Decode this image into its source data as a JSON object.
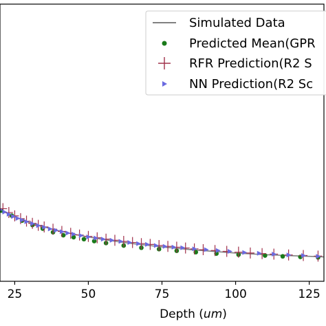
{
  "chart_data": {
    "type": "scatter",
    "title": "",
    "xlabel_prefix": "Depth (",
    "xlabel_unit": "um",
    "xlabel_suffix": ")",
    "ylabel": "",
    "xlim": [
      20,
      130
    ],
    "ylim": [
      0,
      1
    ],
    "x_ticks": [
      25,
      50,
      75,
      100,
      125
    ],
    "x_tick_labels": [
      "25",
      "50",
      "75",
      "100",
      "125"
    ],
    "grid": false,
    "legend_position": "upper-right",
    "series": [
      {
        "name": "Simulated Data",
        "kind": "line",
        "color": "#808080",
        "x": [
          20,
          22.5,
          25,
          30,
          35,
          40,
          45,
          50,
          55,
          60,
          65,
          70,
          75,
          80,
          85,
          90,
          95,
          100,
          105,
          110,
          115,
          120,
          125,
          130
        ],
        "y": [
          0.259,
          0.245,
          0.233,
          0.212,
          0.196,
          0.182,
          0.17,
          0.16,
          0.151,
          0.143,
          0.136,
          0.13,
          0.124,
          0.119,
          0.114,
          0.11,
          0.106,
          0.102,
          0.099,
          0.096,
          0.094,
          0.092,
          0.09,
          0.088
        ]
      },
      {
        "name": "Predicted Mean(GPR",
        "kind": "marker-dot",
        "color": "#1a7a1a",
        "x": [
          20.5,
          24,
          27.5,
          31,
          34.5,
          38,
          41.5,
          45,
          48.5,
          52,
          56,
          62,
          68,
          74,
          80,
          86.5,
          93.5,
          101,
          110,
          116,
          122,
          128
        ],
        "y": [
          0.255,
          0.237,
          0.219,
          0.203,
          0.19,
          0.177,
          0.166,
          0.159,
          0.152,
          0.145,
          0.138,
          0.129,
          0.121,
          0.116,
          0.11,
          0.105,
          0.1,
          0.096,
          0.093,
          0.09,
          0.088,
          0.086
        ]
      },
      {
        "name": "RFR Prediction(R2 S",
        "kind": "marker-plus",
        "color": "#a0304a",
        "x": [
          21,
          23,
          25,
          27,
          29,
          31,
          33,
          35,
          38,
          41,
          44,
          47,
          50,
          53,
          56,
          59,
          62,
          65,
          68,
          71,
          74,
          77,
          80,
          83,
          86,
          89,
          93,
          97,
          101,
          105,
          109,
          113,
          118,
          123,
          128
        ],
        "y": [
          0.262,
          0.248,
          0.236,
          0.226,
          0.217,
          0.209,
          0.202,
          0.196,
          0.188,
          0.18,
          0.173,
          0.167,
          0.162,
          0.157,
          0.152,
          0.148,
          0.144,
          0.14,
          0.136,
          0.133,
          0.129,
          0.126,
          0.123,
          0.12,
          0.117,
          0.114,
          0.111,
          0.108,
          0.105,
          0.102,
          0.1,
          0.098,
          0.095,
          0.093,
          0.091
        ]
      },
      {
        "name": "NN Prediction(R2 Sc",
        "kind": "marker-triangle",
        "color": "#6a6ae0",
        "x": [
          20,
          21.5,
          23,
          24.5,
          26,
          27.5,
          29,
          31,
          33,
          35,
          37,
          39,
          41,
          43,
          45,
          47.5,
          50,
          52.5,
          55,
          58,
          61,
          64,
          67,
          70,
          73,
          76,
          79,
          82,
          86,
          90,
          94,
          98,
          103,
          108,
          113,
          118,
          123,
          128
        ],
        "y": [
          0.258,
          0.25,
          0.242,
          0.234,
          0.227,
          0.221,
          0.215,
          0.208,
          0.201,
          0.195,
          0.189,
          0.184,
          0.179,
          0.174,
          0.17,
          0.165,
          0.16,
          0.156,
          0.152,
          0.148,
          0.144,
          0.14,
          0.136,
          0.133,
          0.129,
          0.126,
          0.123,
          0.121,
          0.117,
          0.114,
          0.111,
          0.108,
          0.104,
          0.101,
          0.098,
          0.095,
          0.093,
          0.09
        ]
      }
    ]
  }
}
